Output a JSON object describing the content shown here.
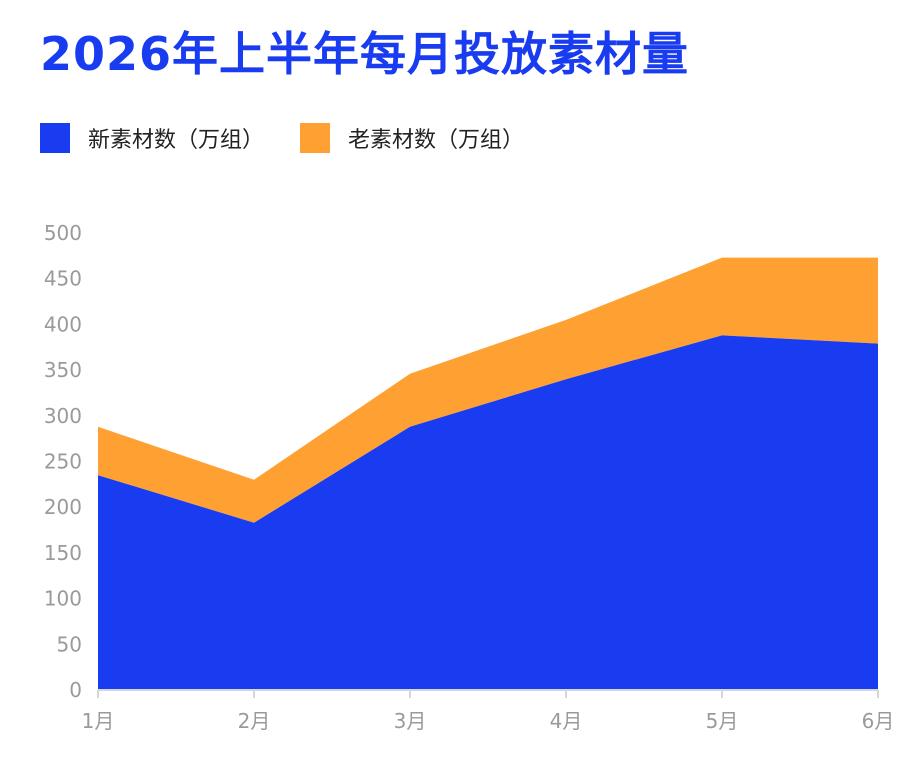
{
  "chart_data": {
    "type": "area",
    "stacked": true,
    "title": "2026年上半年每月投放素材量",
    "categories": [
      "1月",
      "2月",
      "3月",
      "4月",
      "5月",
      "6月"
    ],
    "series": [
      {
        "name": "新素材数（万组）",
        "values": [
          235,
          183,
          288,
          340,
          388,
          379
        ],
        "color": "#1a3cf0"
      },
      {
        "name": "老素材数（万组）",
        "values": [
          53,
          47,
          58,
          65,
          85,
          94
        ],
        "color": "#ffa033"
      }
    ],
    "yticks": [
      "0",
      "50",
      "100",
      "150",
      "200",
      "250",
      "300",
      "350",
      "400",
      "450",
      "500"
    ],
    "ylim": [
      0,
      500
    ],
    "grid": false,
    "legend_position": "top-left"
  }
}
